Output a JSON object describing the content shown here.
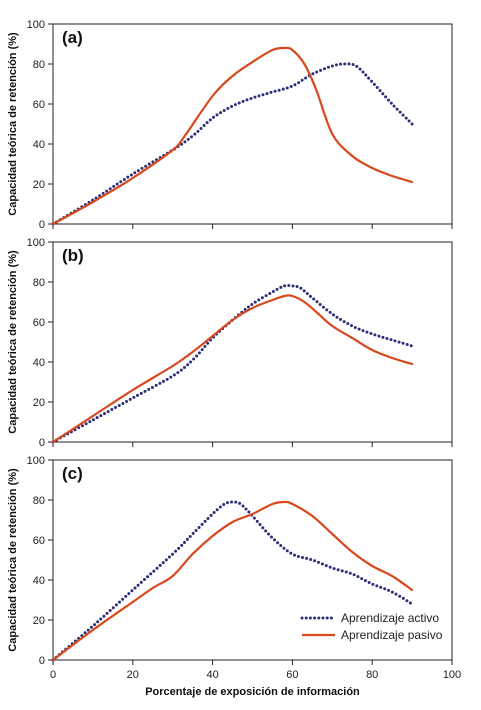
{
  "chart_data": [
    {
      "type": "line",
      "panel_label": "(a)",
      "ylabel": "Capacidad teórica de retención (%)",
      "xlim": [
        0,
        100
      ],
      "ylim": [
        0,
        100
      ],
      "yticks": [
        0,
        20,
        40,
        60,
        80,
        100
      ],
      "grid": false,
      "series": [
        {
          "name": "Aprendizaje activo",
          "style": "dotted",
          "color": "#2b2f7a",
          "x": [
            0,
            10,
            20,
            30,
            35,
            40,
            45,
            50,
            55,
            60,
            65,
            70,
            73,
            76,
            80,
            85,
            90
          ],
          "y": [
            0,
            12,
            25,
            37,
            44,
            53,
            59,
            63,
            66,
            69,
            75,
            79,
            80,
            79,
            71,
            60,
            50
          ]
        },
        {
          "name": "Aprendizaje pasivo",
          "style": "solid",
          "color": "#d9481c",
          "x": [
            0,
            10,
            20,
            30,
            33,
            40,
            45,
            50,
            55,
            58,
            60,
            63,
            66,
            70,
            75,
            80,
            85,
            90
          ],
          "y": [
            0,
            11,
            23,
            37,
            44,
            64,
            74,
            81,
            87,
            88,
            87,
            80,
            67,
            45,
            34,
            28,
            24,
            21
          ]
        }
      ]
    },
    {
      "type": "line",
      "panel_label": "(b)",
      "ylabel": "Capacidad teórica de retención (%)",
      "xlim": [
        0,
        100
      ],
      "ylim": [
        0,
        100
      ],
      "yticks": [
        0,
        20,
        40,
        60,
        80,
        100
      ],
      "grid": false,
      "series": [
        {
          "name": "Aprendizaje activo",
          "style": "dotted",
          "color": "#2b2f7a",
          "x": [
            0,
            10,
            20,
            30,
            35,
            40,
            45,
            50,
            55,
            58,
            60,
            62,
            65,
            70,
            75,
            80,
            85,
            90
          ],
          "y": [
            0,
            11,
            22,
            33,
            41,
            52,
            61,
            69,
            75,
            78,
            78,
            77,
            72,
            64,
            58,
            54,
            51,
            48
          ]
        },
        {
          "name": "Aprendizaje pasivo",
          "style": "solid",
          "color": "#d9481c",
          "x": [
            0,
            10,
            20,
            30,
            35,
            40,
            45,
            50,
            55,
            58,
            60,
            63,
            66,
            70,
            75,
            80,
            85,
            90
          ],
          "y": [
            0,
            13,
            26,
            38,
            45,
            53,
            61,
            67,
            71,
            73,
            73,
            70,
            65,
            58,
            52,
            46,
            42,
            39
          ]
        }
      ]
    },
    {
      "type": "line",
      "panel_label": "(c)",
      "ylabel": "Capacidad teórica de retención (%)",
      "xlabel": "Porcentaje de exposición de información",
      "xlim": [
        0,
        100
      ],
      "ylim": [
        0,
        100
      ],
      "xticks": [
        0,
        20,
        40,
        60,
        80,
        100
      ],
      "yticks": [
        0,
        20,
        40,
        60,
        80,
        100
      ],
      "grid": false,
      "legend": "bottom-right",
      "series": [
        {
          "name": "Aprendizaje activo",
          "style": "dotted",
          "color": "#2b2f7a",
          "x": [
            0,
            10,
            20,
            30,
            35,
            40,
            43,
            45,
            47,
            50,
            55,
            60,
            65,
            70,
            75,
            80,
            85,
            90
          ],
          "y": [
            0,
            17,
            35,
            53,
            63,
            73,
            78,
            79,
            78,
            72,
            61,
            53,
            50,
            46,
            43,
            38,
            34,
            28
          ]
        },
        {
          "name": "Aprendizaje pasivo",
          "style": "solid",
          "color": "#d9481c",
          "x": [
            0,
            10,
            20,
            25,
            30,
            35,
            40,
            45,
            50,
            55,
            58,
            60,
            65,
            70,
            75,
            80,
            85,
            90
          ],
          "y": [
            0,
            15,
            29,
            36,
            42,
            53,
            62,
            69,
            73,
            78,
            79,
            78,
            72,
            63,
            54,
            47,
            42,
            35
          ]
        }
      ]
    }
  ]
}
